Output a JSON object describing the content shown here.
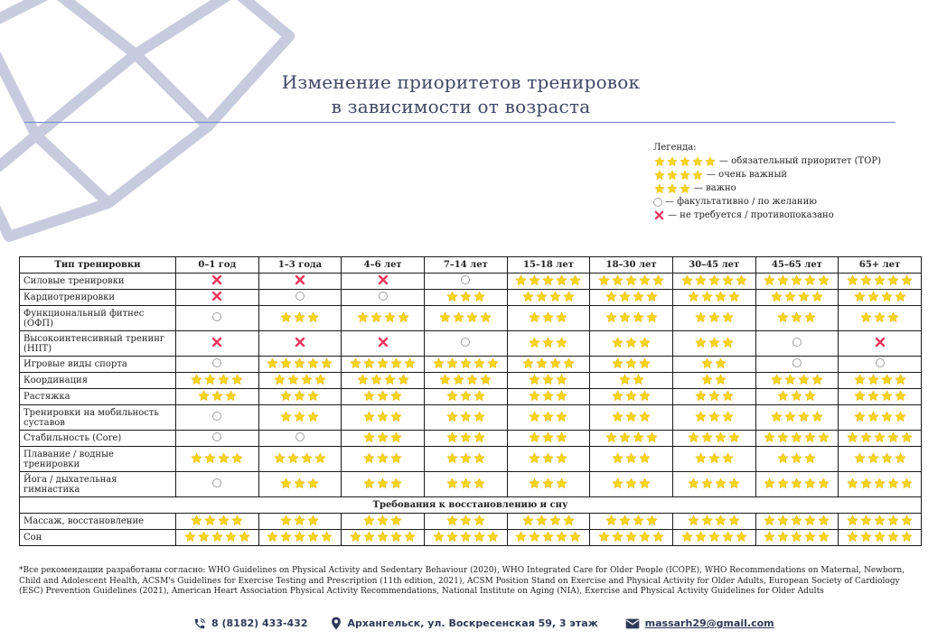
{
  "title": {
    "line1": "Изменение приоритетов тренировок",
    "line2": "в зависимости от возраста"
  },
  "legend": {
    "heading": "Легенда:",
    "items": [
      {
        "symbol": "5",
        "label": "— обязательный приоритет (TOP)"
      },
      {
        "symbol": "4",
        "label": "— очень важный"
      },
      {
        "symbol": "3",
        "label": "— важно"
      },
      {
        "symbol": "o",
        "label": "— факультативно / по желанию"
      },
      {
        "symbol": "x",
        "label": "— не требуется / противопоказано"
      }
    ]
  },
  "table": {
    "headers": [
      "Тип тренировки",
      "0–1 год",
      "1–3 года",
      "4–6 лет",
      "7–14 лет",
      "15–18 лет",
      "18–30 лет",
      "30–45 лет",
      "45–65 лет",
      "65+ лет"
    ],
    "rows": [
      {
        "name": "Силовые тренировки",
        "tall": false,
        "values": [
          "x",
          "x",
          "x",
          "o",
          "5",
          "5",
          "5",
          "5",
          "5"
        ]
      },
      {
        "name": "Кардиотренировки",
        "tall": false,
        "values": [
          "x",
          "o",
          "o",
          "3",
          "4",
          "4",
          "4",
          "4",
          "4"
        ]
      },
      {
        "name": "Функциональный фитнес (ОФП)",
        "tall": true,
        "values": [
          "o",
          "3",
          "4",
          "4",
          "3",
          "4",
          "3",
          "3",
          "3"
        ]
      },
      {
        "name": "Высокоинтенсивный тренинг (HIIT)",
        "tall": true,
        "values": [
          "x",
          "x",
          "x",
          "o",
          "3",
          "3",
          "3",
          "o",
          "x"
        ]
      },
      {
        "name": "Игровые виды спорта",
        "tall": false,
        "values": [
          "o",
          "5",
          "5",
          "5",
          "4",
          "3",
          "2",
          "o",
          "o"
        ]
      },
      {
        "name": "Координация",
        "tall": false,
        "values": [
          "4",
          "4",
          "4",
          "4",
          "3",
          "2",
          "2",
          "4",
          "4"
        ]
      },
      {
        "name": "Растяжка",
        "tall": false,
        "values": [
          "3",
          "3",
          "3",
          "3",
          "3",
          "3",
          "3",
          "3",
          "4"
        ]
      },
      {
        "name": "Тренировки на мобильность суставов",
        "tall": true,
        "values": [
          "o",
          "3",
          "3",
          "3",
          "3",
          "3",
          "3",
          "4",
          "4"
        ]
      },
      {
        "name": "Стабильность (Core)",
        "tall": false,
        "values": [
          "o",
          "o",
          "3",
          "3",
          "3",
          "4",
          "4",
          "5",
          "5"
        ]
      },
      {
        "name": "Плавание / водные тренировки",
        "tall": true,
        "values": [
          "4",
          "4",
          "3",
          "3",
          "3",
          "3",
          "3",
          "3",
          "4"
        ]
      },
      {
        "name": "Йога / дыхательная гимнастика",
        "tall": true,
        "values": [
          "o",
          "3",
          "3",
          "3",
          "3",
          "3",
          "4",
          "5",
          "5"
        ]
      }
    ],
    "section_title": "Требования к восстановлению и сну",
    "recovery_rows": [
      {
        "name": "Массаж, восстановление",
        "tall": false,
        "values": [
          "4",
          "3",
          "3",
          "3",
          "4",
          "4",
          "4",
          "5",
          "5"
        ]
      },
      {
        "name": "Сон",
        "tall": false,
        "values": [
          "5",
          "5",
          "5",
          "5",
          "5",
          "5",
          "5",
          "5",
          "5"
        ]
      }
    ]
  },
  "footnote": "*Все рекомендации разработаны согласно: WHO Guidelines on Physical Activity and Sedentary Behaviour (2020), WHO Integrated Care for Older People (ICOPE), WHO Recommendations on Maternal, Newborn, Child and Adolescent Health, ACSM's Guidelines for Exercise Testing and Prescription (11th edition, 2021), ACSM Position Stand on Exercise and Physical Activity for Older Adults, European Society of Cardiology (ESC) Prevention Guidelines (2021), American Heart Association Physical Activity Recommendations, National Institute on Aging (NIA), Exercise and Physical Activity Guidelines for Older Adults",
  "contacts": {
    "phone": "8 (8182) 433-432",
    "address": "Архангельск, ул. Воскресенская 59, 3 этаж",
    "email": "massarh29@gmail.com"
  },
  "colors": {
    "star": "#f7d51d",
    "star_edge": "#e8b500",
    "cross": "#e8345a",
    "title": "#3f4866",
    "rule": "#6d86c4",
    "deco": "#c7cbde",
    "contacts": "#2f3a59"
  },
  "icons": {
    "star": "star-icon",
    "circle": "optional-circle-icon",
    "cross": "cross-icon",
    "phone": "phone-icon",
    "location": "location-pin-icon",
    "email": "envelope-icon"
  }
}
